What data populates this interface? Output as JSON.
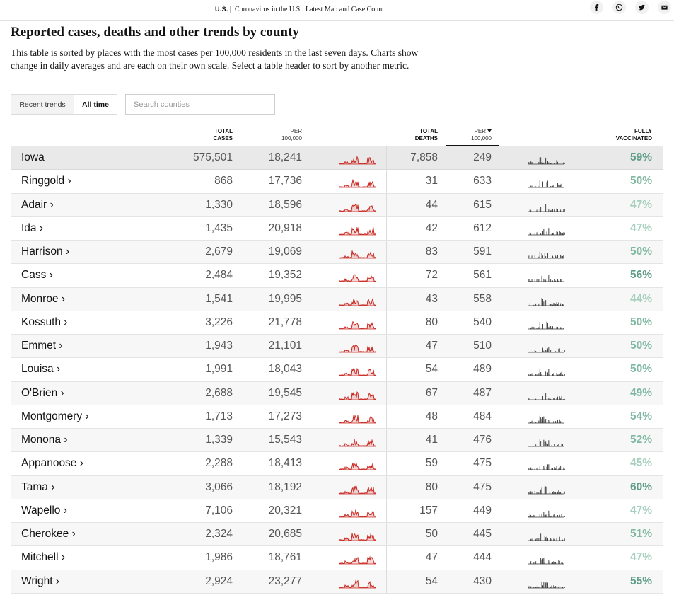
{
  "topbar": {
    "section": "U.S.",
    "story_title": "Coronavirus in the U.S.: Latest Map and Case Count",
    "share_icons": [
      "facebook-icon",
      "whatsapp-icon",
      "twitter-icon",
      "email-icon"
    ]
  },
  "headline": "Reported cases, deaths and other trends by county",
  "description": "This table is sorted by places with the most cases per 100,000 residents in the last seven days. Charts show change in daily averages and are each on their own scale. Select a table header to sort by another metric.",
  "toggle": {
    "recent_label": "Recent trends",
    "alltime_label": "All time",
    "selected": "All time"
  },
  "search": {
    "placeholder": "Search counties",
    "value": ""
  },
  "columns": {
    "total_cases": [
      "TOTAL",
      "CASES"
    ],
    "cases_per": [
      "PER",
      "100,000"
    ],
    "total_deaths": [
      "TOTAL",
      "DEATHS"
    ],
    "deaths_per": [
      "PER",
      "100,000"
    ],
    "fully_vaccinated": [
      "FULLY",
      "VACCINATED"
    ],
    "sorted_by": "deaths_per"
  },
  "colors": {
    "cases_spark": "#c8261f",
    "deaths_spark": "#333333",
    "vacc_dark": "#5f9e86",
    "vacc_mid": "#7fb8a1",
    "vacc_light": "#a6cfbe"
  },
  "rows": [
    {
      "name": "Iowa",
      "cases": "575,501",
      "cases_per": "18,241",
      "deaths": "7,858",
      "deaths_per": "249",
      "vaccinated": "59%",
      "vacc_pct": 59,
      "is_state": true
    },
    {
      "name": "Ringgold ›",
      "cases": "868",
      "cases_per": "17,736",
      "deaths": "31",
      "deaths_per": "633",
      "vaccinated": "50%",
      "vacc_pct": 50
    },
    {
      "name": "Adair ›",
      "cases": "1,330",
      "cases_per": "18,596",
      "deaths": "44",
      "deaths_per": "615",
      "vaccinated": "47%",
      "vacc_pct": 47
    },
    {
      "name": "Ida ›",
      "cases": "1,435",
      "cases_per": "20,918",
      "deaths": "42",
      "deaths_per": "612",
      "vaccinated": "47%",
      "vacc_pct": 47
    },
    {
      "name": "Harrison ›",
      "cases": "2,679",
      "cases_per": "19,069",
      "deaths": "83",
      "deaths_per": "591",
      "vaccinated": "50%",
      "vacc_pct": 50
    },
    {
      "name": "Cass ›",
      "cases": "2,484",
      "cases_per": "19,352",
      "deaths": "72",
      "deaths_per": "561",
      "vaccinated": "56%",
      "vacc_pct": 56
    },
    {
      "name": "Monroe ›",
      "cases": "1,541",
      "cases_per": "19,995",
      "deaths": "43",
      "deaths_per": "558",
      "vaccinated": "44%",
      "vacc_pct": 44
    },
    {
      "name": "Kossuth ›",
      "cases": "3,226",
      "cases_per": "21,778",
      "deaths": "80",
      "deaths_per": "540",
      "vaccinated": "50%",
      "vacc_pct": 50
    },
    {
      "name": "Emmet ›",
      "cases": "1,943",
      "cases_per": "21,101",
      "deaths": "47",
      "deaths_per": "510",
      "vaccinated": "50%",
      "vacc_pct": 50
    },
    {
      "name": "Louisa ›",
      "cases": "1,991",
      "cases_per": "18,043",
      "deaths": "54",
      "deaths_per": "489",
      "vaccinated": "50%",
      "vacc_pct": 50
    },
    {
      "name": "O'Brien ›",
      "cases": "2,688",
      "cases_per": "19,545",
      "deaths": "67",
      "deaths_per": "487",
      "vaccinated": "49%",
      "vacc_pct": 49
    },
    {
      "name": "Montgomery ›",
      "cases": "1,713",
      "cases_per": "17,273",
      "deaths": "48",
      "deaths_per": "484",
      "vaccinated": "54%",
      "vacc_pct": 54
    },
    {
      "name": "Monona ›",
      "cases": "1,339",
      "cases_per": "15,543",
      "deaths": "41",
      "deaths_per": "476",
      "vaccinated": "52%",
      "vacc_pct": 52
    },
    {
      "name": "Appanoose ›",
      "cases": "2,288",
      "cases_per": "18,413",
      "deaths": "59",
      "deaths_per": "475",
      "vaccinated": "45%",
      "vacc_pct": 45
    },
    {
      "name": "Tama ›",
      "cases": "3,066",
      "cases_per": "18,192",
      "deaths": "80",
      "deaths_per": "475",
      "vaccinated": "60%",
      "vacc_pct": 60
    },
    {
      "name": "Wapello ›",
      "cases": "7,106",
      "cases_per": "20,321",
      "deaths": "157",
      "deaths_per": "449",
      "vaccinated": "47%",
      "vacc_pct": 47
    },
    {
      "name": "Cherokee ›",
      "cases": "2,324",
      "cases_per": "20,685",
      "deaths": "50",
      "deaths_per": "445",
      "vaccinated": "51%",
      "vacc_pct": 51
    },
    {
      "name": "Mitchell ›",
      "cases": "1,986",
      "cases_per": "18,761",
      "deaths": "47",
      "deaths_per": "444",
      "vaccinated": "47%",
      "vacc_pct": 47
    },
    {
      "name": "Wright ›",
      "cases": "2,924",
      "cases_per": "23,277",
      "deaths": "54",
      "deaths_per": "430",
      "vaccinated": "55%",
      "vacc_pct": 55
    }
  ]
}
